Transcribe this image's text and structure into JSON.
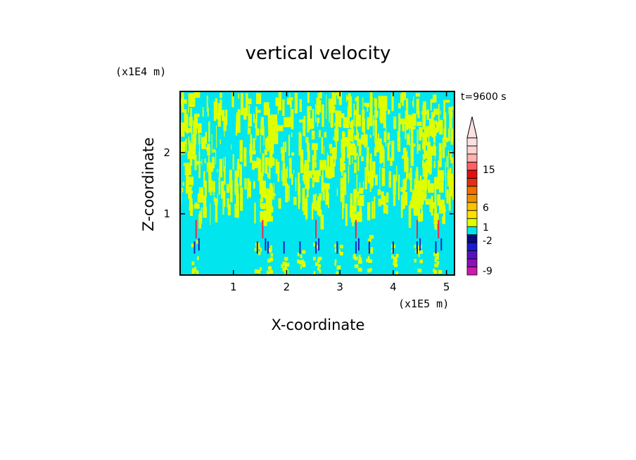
{
  "chart_data": {
    "type": "heatmap",
    "title": "vertical velocity",
    "xlabel": "X-coordinate",
    "ylabel": "Z-coordinate",
    "x_unit": "(x1E5 m)",
    "y_unit": "(x1E4 m)",
    "time_label": "t=9600 s",
    "xlim": [
      0,
      5.15
    ],
    "ylim": [
      0,
      3.0
    ],
    "x_ticks": [
      1,
      2,
      3,
      4,
      5
    ],
    "y_ticks": [
      1,
      2
    ],
    "x_tick_labels": [
      "1",
      "2",
      "3",
      "4",
      "5"
    ],
    "y_tick_labels": [
      "1",
      "2"
    ],
    "colorbar": {
      "colors": [
        "#cc1aaa",
        "#8a10b8",
        "#5a10b8",
        "#1a1ad0",
        "#0a0a80",
        "#00e5ee",
        "#dfff00",
        "#ffe000",
        "#ffc000",
        "#f09000",
        "#f07000",
        "#e03010",
        "#e01010",
        "#ff6060",
        "#ffb0b0",
        "#ffd0d0",
        "#fbe0e0"
      ],
      "tick_labels": [
        "15",
        "6",
        "1",
        "-2",
        "-9"
      ],
      "tick_levels": [
        15,
        6,
        1,
        -2,
        -9
      ],
      "extend": "max"
    },
    "field_colors": {
      "background": "#00e5ee",
      "updraft_weak": "#dfff00",
      "updraft_strong": "#ff2040",
      "downdraft": "#2020c0"
    },
    "plume_centers_x": [
      0.27,
      1.45,
      1.65,
      1.95,
      2.25,
      2.55,
      2.95,
      3.3,
      3.55,
      4.0,
      4.45,
      4.8
    ],
    "convective_columns_x": [
      0.3,
      1.55,
      2.55,
      3.3,
      4.45,
      4.85
    ]
  }
}
